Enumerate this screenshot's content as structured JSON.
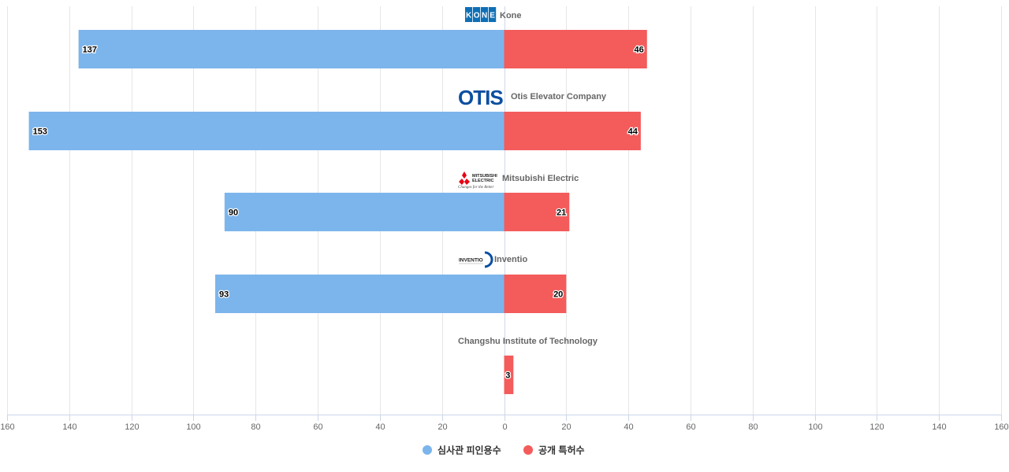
{
  "chart_data": {
    "type": "bar",
    "orientation": "horizontal-butterfly",
    "categories": [
      "Kone",
      "Otis Elevator Company",
      "Mitsubishi Electric",
      "Inventio",
      "Changshu Institute of Technology"
    ],
    "logos": [
      "kone-logo",
      "otis-logo",
      "mitsubishi-electric-logo",
      "inventio-logo",
      ""
    ],
    "logo_text": {
      "kone": [
        "K",
        "O",
        "N",
        "E"
      ],
      "otis": "OTIS",
      "mitsubishi": [
        "MITSUBISHI",
        "ELECTRIC",
        "Changes for the Better"
      ],
      "inventio": "INVENTIO"
    },
    "series": [
      {
        "name": "심사관 피인용수",
        "color": "#7cb5ec",
        "direction": "left",
        "values": [
          137,
          153,
          90,
          93,
          0
        ]
      },
      {
        "name": "공개 특허수",
        "color": "#f45b5b",
        "direction": "right",
        "values": [
          46,
          44,
          21,
          20,
          3
        ]
      }
    ],
    "xlim": [
      -160,
      160
    ],
    "x_ticks": [
      -160,
      -140,
      -120,
      -100,
      -80,
      -60,
      -40,
      -20,
      0,
      20,
      40,
      60,
      80,
      100,
      120,
      140,
      160
    ],
    "x_tick_labels": [
      "160",
      "140",
      "120",
      "100",
      "80",
      "60",
      "40",
      "20",
      "0",
      "20",
      "40",
      "60",
      "80",
      "100",
      "120",
      "140",
      "160"
    ],
    "grid": true,
    "legend_position": "bottom-center",
    "title": "",
    "xlabel": "",
    "ylabel": ""
  }
}
